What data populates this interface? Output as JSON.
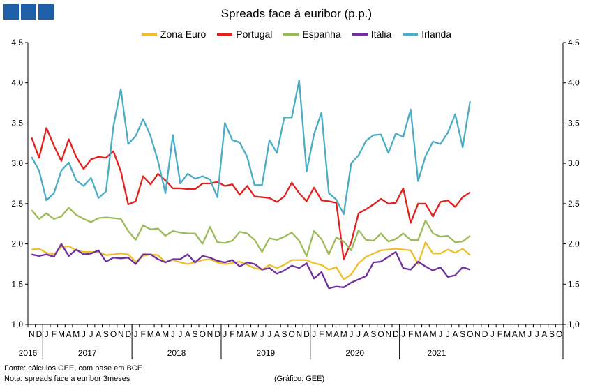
{
  "title": "Spreads face à euribor (p.p.)",
  "footnote_source": "Fonte: cálculos GEE, com base em BCE",
  "footnote_note": "Nota: spreads face a euribor 3meses",
  "credit": "(Gráfico: GEE)",
  "logo": {
    "colors": [
      "#1f5fa8",
      "#1f5fa8",
      "#1f5fa8"
    ]
  },
  "chart_data": {
    "type": "line",
    "title": "Spreads face à euribor (p.p.)",
    "ylim": [
      1.0,
      4.5
    ],
    "yticks": [
      "1,0",
      "1.5",
      "2.0",
      "2.5",
      "3.0",
      "3.5",
      "4.0",
      "4.5"
    ],
    "dual_y_axis": true,
    "grid": false,
    "legend_position": "top",
    "x_month_labels": [
      "N",
      "D",
      "J",
      "F",
      "M",
      "A",
      "M",
      "J",
      "J",
      "A",
      "S",
      "O",
      "N",
      "D",
      "J",
      "F",
      "M",
      "A",
      "M",
      "J",
      "J",
      "A",
      "S",
      "O",
      "N",
      "D",
      "J",
      "F",
      "M",
      "A",
      "M",
      "J",
      "J",
      "A",
      "S",
      "O",
      "N",
      "D",
      "J",
      "F",
      "M",
      "A",
      "M",
      "J",
      "J",
      "A",
      "S",
      "O",
      "N",
      "D",
      "J",
      "F",
      "M",
      "A",
      "M",
      "J",
      "J",
      "A",
      "S",
      "O",
      "N",
      "D",
      "J",
      "F",
      "M",
      "A",
      "M",
      "J",
      "J",
      "A",
      "S",
      "O"
    ],
    "x_year_labels": [
      {
        "label": "2016",
        "start": 0,
        "end": 1
      },
      {
        "label": "2017",
        "start": 2,
        "end": 13
      },
      {
        "label": "2018",
        "start": 14,
        "end": 25
      },
      {
        "label": "2019",
        "start": 26,
        "end": 37
      },
      {
        "label": "2020",
        "start": 38,
        "end": 49
      },
      {
        "label": "2021",
        "start": 50,
        "end": 59
      }
    ],
    "series": [
      {
        "name": "Zona Euro",
        "color": "#f0be2c",
        "values": [
          1.93,
          1.94,
          1.89,
          1.87,
          1.96,
          1.97,
          1.92,
          1.9,
          1.9,
          1.9,
          1.86,
          1.87,
          1.88,
          1.87,
          1.78,
          1.85,
          1.87,
          1.86,
          1.77,
          1.8,
          1.77,
          1.75,
          1.77,
          1.8,
          1.81,
          1.77,
          1.75,
          1.76,
          1.78,
          1.74,
          1.7,
          1.68,
          1.74,
          1.7,
          1.74,
          1.8,
          1.8,
          1.8,
          1.76,
          1.74,
          1.68,
          1.71,
          1.56,
          1.62,
          1.76,
          1.84,
          1.88,
          1.92,
          1.93,
          1.94,
          1.93,
          1.92,
          1.75,
          2.02,
          1.88,
          1.88,
          1.93,
          1.89,
          1.94,
          1.86
        ]
      },
      {
        "name": "Portugal",
        "color": "#e4201c",
        "values": [
          3.32,
          3.07,
          3.44,
          3.22,
          3.03,
          3.3,
          3.08,
          2.93,
          3.05,
          3.08,
          3.07,
          3.15,
          2.9,
          2.49,
          2.53,
          2.84,
          2.74,
          2.87,
          2.79,
          2.69,
          2.69,
          2.68,
          2.68,
          2.75,
          2.75,
          2.77,
          2.72,
          2.74,
          2.61,
          2.72,
          2.59,
          2.58,
          2.57,
          2.52,
          2.59,
          2.76,
          2.63,
          2.53,
          2.7,
          2.54,
          2.53,
          2.51,
          1.81,
          2.02,
          2.38,
          2.43,
          2.49,
          2.56,
          2.5,
          2.51,
          2.69,
          2.26,
          2.5,
          2.5,
          2.34,
          2.52,
          2.54,
          2.46,
          2.58,
          2.64
        ]
      },
      {
        "name": "Espanha",
        "color": "#9bbb59",
        "values": [
          2.42,
          2.31,
          2.38,
          2.31,
          2.34,
          2.45,
          2.36,
          2.31,
          2.27,
          2.32,
          2.33,
          2.32,
          2.31,
          2.16,
          2.05,
          2.23,
          2.18,
          2.19,
          2.1,
          2.16,
          2.14,
          2.13,
          2.13,
          2.0,
          2.21,
          2.02,
          2.01,
          2.04,
          2.15,
          2.13,
          2.05,
          1.9,
          2.07,
          2.05,
          2.09,
          2.14,
          2.04,
          1.85,
          2.16,
          2.06,
          1.87,
          2.08,
          2.03,
          1.92,
          2.17,
          2.05,
          2.04,
          2.13,
          2.03,
          2.06,
          2.13,
          2.05,
          2.05,
          2.29,
          2.13,
          2.09,
          2.1,
          2.02,
          2.03,
          2.1
        ]
      },
      {
        "name": "Itália",
        "color": "#7030a0",
        "values": [
          1.87,
          1.85,
          1.87,
          1.84,
          2.0,
          1.85,
          1.93,
          1.87,
          1.88,
          1.92,
          1.78,
          1.83,
          1.82,
          1.83,
          1.75,
          1.87,
          1.87,
          1.81,
          1.77,
          1.81,
          1.81,
          1.87,
          1.77,
          1.85,
          1.83,
          1.79,
          1.77,
          1.8,
          1.72,
          1.77,
          1.75,
          1.68,
          1.7,
          1.63,
          1.67,
          1.73,
          1.7,
          1.76,
          1.57,
          1.65,
          1.45,
          1.47,
          1.46,
          1.52,
          1.56,
          1.6,
          1.77,
          1.78,
          1.84,
          1.9,
          1.7,
          1.68,
          1.78,
          1.72,
          1.67,
          1.71,
          1.59,
          1.61,
          1.71,
          1.68
        ]
      },
      {
        "name": "Irlanda",
        "color": "#4bacc6",
        "values": [
          3.08,
          2.91,
          2.54,
          2.63,
          2.91,
          3.01,
          2.79,
          2.72,
          2.82,
          2.57,
          2.65,
          3.46,
          3.92,
          3.24,
          3.34,
          3.55,
          3.34,
          3.03,
          2.63,
          3.35,
          2.75,
          2.87,
          2.81,
          2.84,
          2.8,
          2.58,
          3.5,
          3.29,
          3.26,
          3.08,
          2.73,
          2.73,
          3.29,
          3.13,
          3.57,
          3.57,
          4.03,
          2.9,
          3.36,
          3.63,
          2.63,
          2.55,
          2.37,
          3.0,
          3.1,
          3.28,
          3.35,
          3.36,
          3.13,
          3.37,
          3.33,
          3.67,
          2.78,
          3.09,
          3.27,
          3.24,
          3.38,
          3.61,
          3.2,
          3.77
        ]
      }
    ]
  }
}
